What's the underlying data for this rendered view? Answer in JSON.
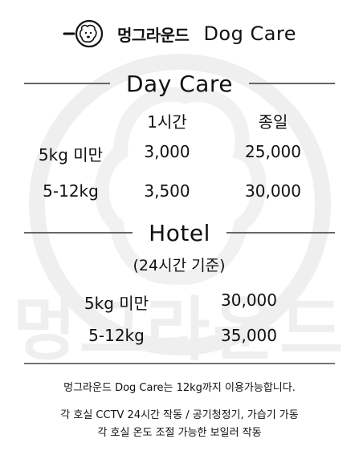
{
  "brand": {
    "logo_icon": "dog-face-icon",
    "name_ko": "멍그라운드",
    "name_en": "Dog Care",
    "watermark_text": "멍그라운드"
  },
  "daycare": {
    "title": "Day Care",
    "col_hour": "1시간",
    "col_day": "종일",
    "rows": [
      {
        "weight": "5kg 미만",
        "hour": "3,000",
        "day": "25,000"
      },
      {
        "weight": "5-12kg",
        "hour": "3,500",
        "day": "30,000"
      }
    ]
  },
  "hotel": {
    "title": "Hotel",
    "basis": "(24시간 기준)",
    "rows": [
      {
        "weight": "5kg 미만",
        "price": "30,000"
      },
      {
        "weight": "5-12kg",
        "price": "35,000"
      }
    ]
  },
  "notes": {
    "line1": "멍그라운드 Dog Care는 12kg까지 이용가능합니다.",
    "line2": "각 호실 CCTV 24시간 작동 / 공기청정기, 가습기 가동",
    "line3": "각 호실 온도 조절 가능한 보일러 작동"
  }
}
